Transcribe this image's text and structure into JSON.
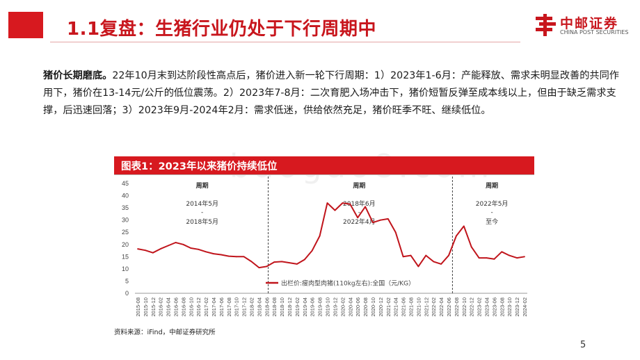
{
  "header": {
    "title": "1.1复盘：生猪行业仍处于下行周期中",
    "logo_cn": "中邮证券",
    "logo_en": "CHINA POST SECURITIES"
  },
  "body": {
    "lead": "猪价长期磨底。",
    "text": "22年10月末到达阶段性高点后，猪价进入新一轮下行周期：1）2023年1-6月：产能释放、需求未明显改善的共同作用下，猪价在13-14元/公斤的低位震荡。2）2023年7-8月：二次育肥入场冲击下，猪价短暂反弹至成本线以上，但由于缺乏需求支撑，后迅速回落；3）2023年9月-2024年2月：需求低迷，供给依然充足，猪价旺季不旺、继续低位。"
  },
  "watermark": "baogao8.com",
  "chart_title": "图表1：2023年以来猪价持续低位",
  "source": "资料来源：iFind，中邮证券研究所",
  "page_number": "5",
  "chart_data": {
    "type": "line",
    "title": "图表1：2023年以来猪价持续低位",
    "xlabel": "",
    "ylabel": "",
    "ylim": [
      0,
      45
    ],
    "yticks": [
      "0",
      "5",
      "10",
      "15",
      "20",
      "25",
      "30",
      "35",
      "40",
      "45"
    ],
    "grid": false,
    "legend_position": "bottom-center",
    "x_tick_labels": [
      "2015-08",
      "2015-10",
      "2015-12",
      "2016-02",
      "2016-04",
      "2016-06",
      "2016-08",
      "2016-10",
      "2016-12",
      "2017-02",
      "2017-04",
      "2017-06",
      "2017-08",
      "2017-10",
      "2017-12",
      "2018-02",
      "2018-04",
      "2018-06",
      "2018-08",
      "2018-10",
      "2018-12",
      "2019-02",
      "2019-04",
      "2019-06",
      "2019-08",
      "2019-10",
      "2019-12",
      "2020-02",
      "2020-04",
      "2020-06",
      "2020-08",
      "2020-10",
      "2020-12",
      "2021-02",
      "2021-04",
      "2021-06",
      "2021-08",
      "2021-10",
      "2021-12",
      "2022-02",
      "2022-04",
      "2022-06",
      "2022-08",
      "2022-10",
      "2022-12",
      "2023-02",
      "2023-04",
      "2023-06",
      "2023-08",
      "2023-10",
      "2023-12",
      "2024-02"
    ],
    "series": [
      {
        "name": "出栏价:瘦肉型肉猪(110kg左右):全国（元/KG）",
        "color": "#c0141b",
        "values": [
          18.2,
          17.6,
          16.6,
          18.2,
          19.5,
          20.8,
          20.0,
          18.5,
          18.0,
          17.0,
          16.2,
          15.8,
          15.2,
          15.0,
          15.0,
          13.0,
          10.5,
          11.0,
          12.8,
          13.0,
          12.5,
          12.0,
          13.8,
          17.5,
          23.5,
          37.0,
          34.0,
          37.0,
          36.5,
          31.0,
          35.5,
          29.0,
          30.0,
          30.5,
          25.0,
          15.0,
          15.5,
          11.0,
          15.5,
          13.0,
          12.0,
          15.5,
          23.5,
          27.5,
          19.0,
          14.5,
          14.5,
          14.0,
          17.0,
          15.5,
          14.5,
          15.0
        ]
      }
    ],
    "annotations": [
      {
        "heading": "周期",
        "start": "2014年5月",
        "sep": "-",
        "end": "2018年5月"
      },
      {
        "heading": "周期",
        "start": "2018年6月",
        "sep": "-",
        "end": "2022年4月"
      },
      {
        "heading": "周期",
        "start": "2022年5月",
        "sep": "-",
        "end": "至今"
      }
    ]
  }
}
